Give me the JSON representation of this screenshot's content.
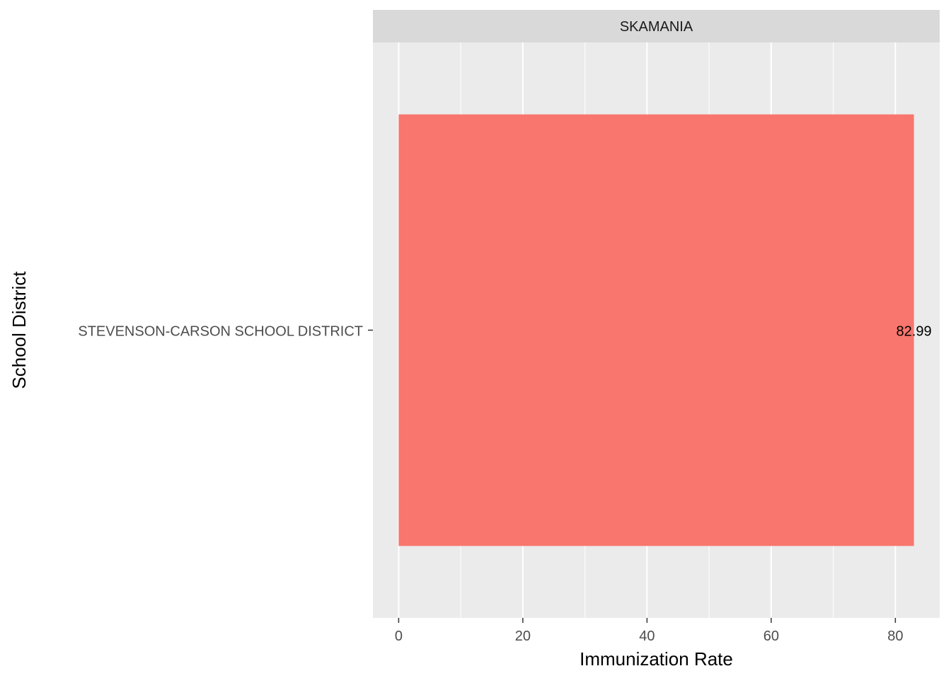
{
  "chart_data": {
    "type": "bar",
    "orientation": "horizontal",
    "facet_label": "SKAMANIA",
    "categories": [
      "STEVENSON-CARSON SCHOOL DISTRICT"
    ],
    "values": [
      82.99
    ],
    "value_labels": [
      "82.99"
    ],
    "xlabel": "Immunization Rate",
    "ylabel": "School District",
    "xlim": [
      -4.15,
      87.14
    ],
    "x_ticks": [
      0,
      20,
      40,
      60,
      80
    ],
    "x_tick_labels": [
      "0",
      "20",
      "40",
      "60",
      "80"
    ],
    "grid": true,
    "legend": "none",
    "colors": {
      "bar": "#F8766D",
      "panel_background": "#EBEBEB",
      "grid": "#FFFFFF",
      "strip_background": "#D9D9D9",
      "axis_text": "#4D4D4D",
      "text": "#000000"
    }
  }
}
